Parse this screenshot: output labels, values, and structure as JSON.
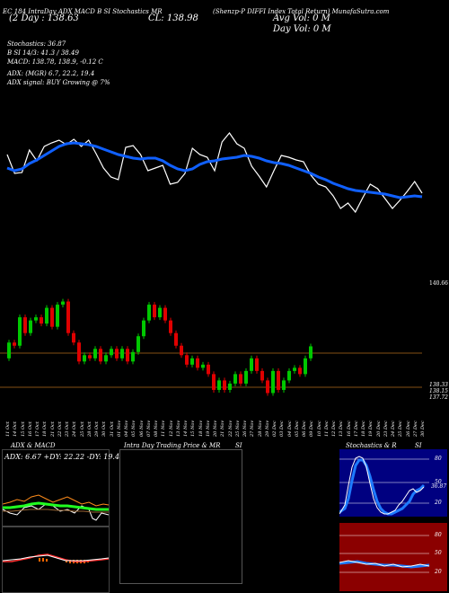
{
  "header": {
    "source": "EC 184 IntraDay ADX MACD B SI Stochastics MR",
    "chart_title": "(Shenzp-P DIFFI Index Total Return) MunafaSutra.com",
    "range_label": "(2 Day : 138.63",
    "close_label": "CL: 138.98",
    "avg_vol": "Avg Vol: 0  M",
    "day_vol": "Day Vol: 0   M"
  },
  "indicators": {
    "stochastics": "Stochastics: 36.87",
    "si_line": "B          SI 14/3: 41.3 / 38.49",
    "macd": "MACD: 138.78, 138.9, -0.12  C",
    "adx": "ADX:                (MGR) 6.7, 22.2, 19.4",
    "adx_signal": "ADX  signal:                        BUY Growing @ 7%"
  },
  "price_labels": {
    "top": "140.66",
    "mid1": "138.33",
    "mid2": "138.15",
    "mid3": "137.72"
  },
  "dates": [
    "11 Oct",
    "14 Oct",
    "15 Oct",
    "16 Oct",
    "17 Oct",
    "18 Oct",
    "21 Oct",
    "22 Oct",
    "23 Oct",
    "24 Oct",
    "25 Oct",
    "28 Oct",
    "29 Oct",
    "30 Oct",
    "31 Oct",
    "01 Nov",
    "04 Nov",
    "05 Nov",
    "06 Nov",
    "07 Nov",
    "08 Nov",
    "11 Nov",
    "12 Nov",
    "13 Nov",
    "14 Nov",
    "15 Nov",
    "18 Nov",
    "19 Nov",
    "20 Nov",
    "21 Nov",
    "22 Nov",
    "25 Nov",
    "26 Nov",
    "27 Nov",
    "28 Nov",
    "29 Nov",
    "02 Dec",
    "03 Dec",
    "04 Dec",
    "05 Dec",
    "06 Dec",
    "09 Dec",
    "10 Dec",
    "11 Dec",
    "12 Dec",
    "13 Dec",
    "16 Dec",
    "17 Dec",
    "18 Dec",
    "19 Dec",
    "20 Dec",
    "23 Dec",
    "24 Dec",
    "25 Dec",
    "26 Dec",
    "27 Dec",
    "30 Dec"
  ],
  "bottom_panels": {
    "adx_title": "ADX  & MACD",
    "adx_values": "ADX: 6.67  +DY: 22.22  -DY: 19.44",
    "intraday_title": "Intra  Day Trading Price  & MR",
    "si_title": "SI",
    "stoch_title": "Stochastics & R",
    "stoch_si": "SI",
    "stoch_ticks": [
      "80",
      "50",
      "20"
    ],
    "si_ticks": [
      "80",
      "50",
      "20"
    ],
    "stoch_value": "36.87"
  },
  "chart_data": {
    "type": "candlestick",
    "candles": [
      {
        "o": 138.6,
        "c": 139.1
      },
      {
        "o": 139.1,
        "c": 139.0
      },
      {
        "o": 139.0,
        "c": 139.9
      },
      {
        "o": 139.9,
        "c": 139.4
      },
      {
        "o": 139.4,
        "c": 139.8
      },
      {
        "o": 139.8,
        "c": 139.9
      },
      {
        "o": 139.9,
        "c": 139.7
      },
      {
        "o": 139.7,
        "c": 140.2
      },
      {
        "o": 140.2,
        "c": 139.6
      },
      {
        "o": 139.6,
        "c": 140.3
      },
      {
        "o": 140.3,
        "c": 140.4
      },
      {
        "o": 140.4,
        "c": 139.4
      },
      {
        "o": 139.4,
        "c": 139.1
      },
      {
        "o": 139.1,
        "c": 138.5
      },
      {
        "o": 138.5,
        "c": 138.7
      },
      {
        "o": 138.7,
        "c": 138.6
      },
      {
        "o": 138.6,
        "c": 138.9
      },
      {
        "o": 138.9,
        "c": 138.5
      },
      {
        "o": 138.5,
        "c": 138.7
      },
      {
        "o": 138.7,
        "c": 138.9
      },
      {
        "o": 138.9,
        "c": 138.6
      },
      {
        "o": 138.6,
        "c": 138.9
      },
      {
        "o": 138.9,
        "c": 138.5
      },
      {
        "o": 138.5,
        "c": 138.8
      },
      {
        "o": 138.8,
        "c": 139.3
      },
      {
        "o": 139.3,
        "c": 139.8
      },
      {
        "o": 139.8,
        "c": 140.3
      },
      {
        "o": 140.3,
        "c": 139.9
      },
      {
        "o": 139.9,
        "c": 140.2
      },
      {
        "o": 140.2,
        "c": 139.8
      },
      {
        "o": 139.8,
        "c": 139.4
      },
      {
        "o": 139.4,
        "c": 139.0
      },
      {
        "o": 139.0,
        "c": 138.7
      },
      {
        "o": 138.7,
        "c": 138.4
      },
      {
        "o": 138.4,
        "c": 138.6
      },
      {
        "o": 138.6,
        "c": 138.3
      },
      {
        "o": 138.3,
        "c": 138.4
      },
      {
        "o": 138.4,
        "c": 138.1
      },
      {
        "o": 138.1,
        "c": 137.6
      },
      {
        "o": 137.6,
        "c": 137.9
      },
      {
        "o": 137.9,
        "c": 137.6
      },
      {
        "o": 137.6,
        "c": 137.8
      },
      {
        "o": 137.8,
        "c": 138.1
      },
      {
        "o": 138.1,
        "c": 137.8
      },
      {
        "o": 137.8,
        "c": 138.2
      },
      {
        "o": 138.2,
        "c": 138.6
      },
      {
        "o": 138.6,
        "c": 138.2
      },
      {
        "o": 138.2,
        "c": 137.9
      },
      {
        "o": 137.9,
        "c": 137.5
      },
      {
        "o": 137.5,
        "c": 138.2
      },
      {
        "o": 138.2,
        "c": 137.6
      },
      {
        "o": 137.6,
        "c": 137.9
      },
      {
        "o": 137.9,
        "c": 138.2
      },
      {
        "o": 138.2,
        "c": 138.3
      },
      {
        "o": 138.3,
        "c": 138.1
      },
      {
        "o": 138.1,
        "c": 138.6
      },
      {
        "o": 138.6,
        "c": 138.98
      }
    ],
    "ylim": [
      137.2,
      140.9
    ],
    "hlines": [
      138.33,
      137.72
    ],
    "colors": {
      "up": "#00c800",
      "down": "#e00000",
      "ma": "#1060ff",
      "price_line": "#ffffff",
      "hline": "#b06a1a"
    },
    "overview_price": [
      172,
      193,
      192,
      167,
      179,
      163,
      159,
      156,
      161,
      155,
      163,
      156,
      171,
      187,
      197,
      200,
      164,
      162,
      172,
      190,
      187,
      184,
      205,
      203,
      193,
      165,
      172,
      175,
      190,
      158,
      148,
      160,
      165,
      185,
      196,
      208,
      190,
      173,
      175,
      178,
      180,
      195,
      205,
      208,
      218,
      232,
      226,
      236,
      220,
      205,
      210,
      221,
      232,
      223,
      213,
      202,
      215
    ],
    "overview_ma": [
      187,
      190,
      188,
      182,
      178,
      173,
      168,
      163,
      160,
      159,
      160,
      161,
      163,
      166,
      169,
      172,
      174,
      176,
      177,
      176,
      176,
      179,
      184,
      188,
      190,
      188,
      183,
      180,
      179,
      177,
      176,
      175,
      173,
      174,
      176,
      179,
      181,
      182,
      184,
      187,
      190,
      193,
      197,
      200,
      204,
      207,
      210,
      212,
      213,
      214,
      215,
      216,
      218,
      220,
      219,
      218,
      219
    ]
  }
}
